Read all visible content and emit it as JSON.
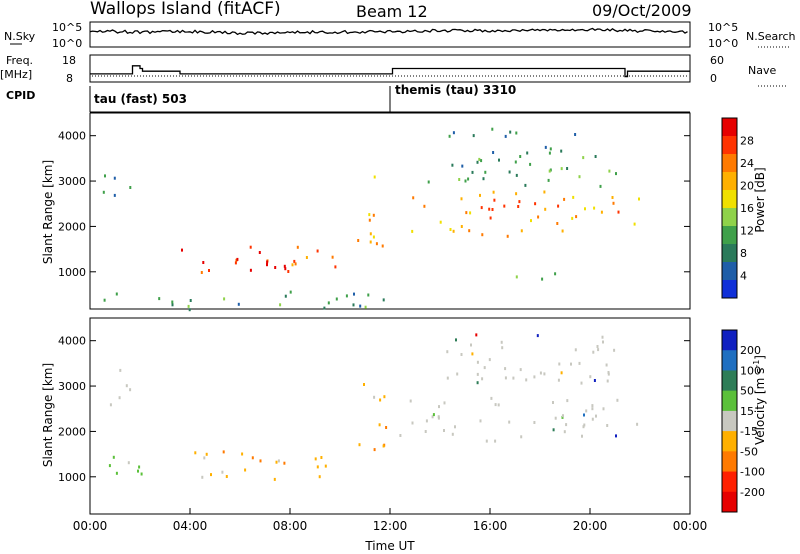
{
  "header": {
    "station": "Wallops Island (fitACF)",
    "beam": "Beam 12",
    "date": "09/Oct/2009"
  },
  "side_labels": {
    "n_sky": "N.Sky",
    "n_search": "N.Search",
    "freq": "Freq.",
    "freq_unit": "[MHz]",
    "nave": "Nave",
    "cpid": "CPID"
  },
  "noise_panel": {
    "left_ticks": [
      "10^5",
      "10^0"
    ],
    "right_ticks": [
      "10^5",
      "10^0"
    ]
  },
  "freq_panel": {
    "left_ticks": [
      "18",
      "8"
    ],
    "right_ticks": [
      "60",
      "0"
    ]
  },
  "cpid_panel": {
    "segments": [
      {
        "label": "tau (fast) 503",
        "start_hour": 0
      },
      {
        "label": "themis (tau) 3310",
        "start_hour": 12
      }
    ]
  },
  "x_axis": {
    "label": "Time UT",
    "ticks": [
      "00:00",
      "04:00",
      "08:00",
      "12:00",
      "16:00",
      "20:00",
      "00:00"
    ]
  },
  "power_colorbar": {
    "title": "Power [dB]",
    "ticks": [
      "28",
      "24",
      "20",
      "16",
      "12",
      "8",
      "4"
    ],
    "colors": [
      "#e60000",
      "#ff3300",
      "#ff7a00",
      "#ffb000",
      "#f0e000",
      "#8fd24a",
      "#3fa04a",
      "#2a7a5a",
      "#1f5ea8",
      "#1030d8"
    ]
  },
  "velocity_colorbar": {
    "title": "Velocity [m s",
    "title_sup": "-1",
    "title_end": "]",
    "ticks": [
      "200",
      "100",
      "50",
      "15",
      "-15",
      "-50",
      "-100",
      "-200"
    ],
    "colors": [
      "#1020c0",
      "#1f6fc0",
      "#2e7d57",
      "#5bc03a",
      "#c8c8c0",
      "#ffb000",
      "#ff7a00",
      "#ff2000",
      "#e60000"
    ]
  },
  "chart_data": [
    {
      "type": "heatmap",
      "title": "Power",
      "xlabel": "Time UT",
      "ylabel": "Slant Range [km]",
      "xlim_hours": [
        0,
        24
      ],
      "ylim_km": [
        180,
        4500
      ],
      "y_ticks": [
        1000,
        2000,
        3000,
        4000
      ],
      "colorbar": "Power [dB]",
      "regions": [
        {
          "t": [
            0.5,
            1.6
          ],
          "r": [
            2500,
            3400
          ],
          "value_db": 8
        },
        {
          "t": [
            3.6,
            10.2
          ],
          "r": [
            900,
            1600
          ],
          "value_db": 24
        },
        {
          "t": [
            6.0,
            8.5
          ],
          "r": [
            950,
            1300
          ],
          "value_db": 28
        },
        {
          "t": [
            10.6,
            12.0
          ],
          "r": [
            1600,
            3200
          ],
          "value_db": 20
        },
        {
          "t": [
            12.0,
            22.0
          ],
          "r": [
            1800,
            2800
          ],
          "value_db": 20
        },
        {
          "t": [
            13.5,
            21.0
          ],
          "r": [
            2900,
            4200
          ],
          "value_db": 8
        },
        {
          "t": [
            16.5,
            19.0
          ],
          "r": [
            800,
            1100
          ],
          "value_db": 12
        },
        {
          "t": [
            0.0,
            12.0
          ],
          "r": [
            180,
            600
          ],
          "value_db": 8
        }
      ]
    },
    {
      "type": "heatmap",
      "title": "Velocity",
      "xlabel": "Time UT",
      "ylabel": "Slant Range [km]",
      "xlim_hours": [
        0,
        24
      ],
      "ylim_km": [
        180,
        4500
      ],
      "y_ticks": [
        1000,
        2000,
        3000,
        4000
      ],
      "colorbar": "Velocity [m s-1]",
      "regions": [
        {
          "t": [
            0.5,
            1.6
          ],
          "r": [
            2500,
            3400
          ],
          "value_ms": 0
        },
        {
          "t": [
            3.6,
            10.2
          ],
          "r": [
            900,
            1600
          ],
          "value_ms": -40
        },
        {
          "t": [
            10.6,
            12.0
          ],
          "r": [
            1600,
            3200
          ],
          "value_ms": -30
        },
        {
          "t": [
            12.0,
            22.0
          ],
          "r": [
            1800,
            2800
          ],
          "value_ms": 0
        },
        {
          "t": [
            13.5,
            21.0
          ],
          "r": [
            2900,
            4200
          ],
          "value_ms": 0
        },
        {
          "t": [
            0.5,
            2.5
          ],
          "r": [
            1000,
            1800
          ],
          "value_ms": 20
        }
      ]
    },
    {
      "type": "line",
      "title": "N.Sky",
      "xlim_hours": [
        0,
        24
      ],
      "ylim_log10": [
        0,
        5
      ],
      "x": [
        0,
        2,
        4,
        6,
        8,
        10,
        12,
        14,
        16,
        18,
        20,
        22,
        24
      ],
      "y": [
        3.2,
        3.0,
        3.1,
        2.8,
        2.9,
        3.0,
        3.1,
        3.3,
        3.2,
        3.4,
        3.5,
        3.2,
        3.0
      ]
    },
    {
      "type": "line",
      "title": "Freq. [MHz]",
      "xlim_hours": [
        0,
        24
      ],
      "ylim": [
        8,
        18
      ],
      "x": [
        0,
        1.6,
        1.7,
        2.0,
        2.1,
        3.5,
        3.6,
        12.0,
        12.1,
        21.0,
        21.4,
        21.5,
        24
      ],
      "y": [
        11,
        11,
        14,
        13,
        12,
        12,
        11,
        11,
        13,
        13,
        10,
        12,
        12
      ]
    }
  ]
}
